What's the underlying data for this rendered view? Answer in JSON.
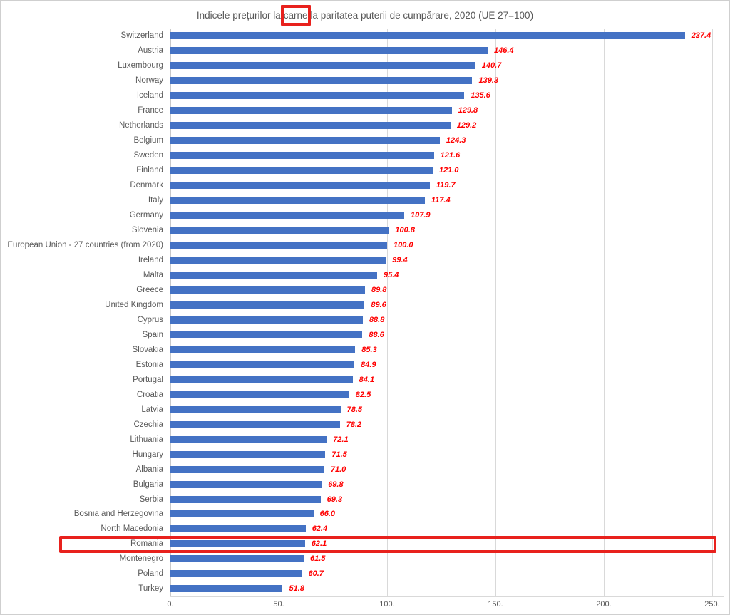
{
  "title": {
    "prefix": "Indicele prețurilor la",
    "boxed_word": "carne",
    "suffix": "la paritatea puterii de cumpărare, 2020 (UE 27=100)",
    "color": "#595959"
  },
  "annotations": {
    "boxed_title_word": "carne",
    "highlighted_country": "Romania",
    "highlight_color": "#e8211d"
  },
  "colors": {
    "bar": "#4472c4",
    "value_label": "#ff0000",
    "gridline": "#d9d9d9",
    "text": "#595959"
  },
  "chart_data": {
    "type": "bar",
    "orientation": "horizontal",
    "title": "Indicele prețurilor la carne la paritatea puterii de cumpărare, 2020 (UE 27=100)",
    "categories": [
      "Switzerland",
      "Austria",
      "Luxembourg",
      "Norway",
      "Iceland",
      "France",
      "Netherlands",
      "Belgium",
      "Sweden",
      "Finland",
      "Denmark",
      "Italy",
      "Germany",
      "Slovenia",
      "European Union - 27 countries (from 2020)",
      "Ireland",
      "Malta",
      "Greece",
      "United Kingdom",
      "Cyprus",
      "Spain",
      "Slovakia",
      "Estonia",
      "Portugal",
      "Croatia",
      "Latvia",
      "Czechia",
      "Lithuania",
      "Hungary",
      "Albania",
      "Bulgaria",
      "Serbia",
      "Bosnia and Herzegovina",
      "North Macedonia",
      "Romania",
      "Montenegro",
      "Poland",
      "Turkey"
    ],
    "values": [
      237.4,
      146.4,
      140.7,
      139.3,
      135.6,
      129.8,
      129.2,
      124.3,
      121.6,
      121.0,
      119.7,
      117.4,
      107.9,
      100.8,
      100.0,
      99.4,
      95.4,
      89.8,
      89.6,
      88.8,
      88.6,
      85.3,
      84.9,
      84.1,
      82.5,
      78.5,
      78.2,
      72.1,
      71.5,
      71.0,
      69.8,
      69.3,
      66.0,
      62.4,
      62.1,
      61.5,
      60.7,
      51.8
    ],
    "xlabel": "",
    "ylabel": "",
    "xlim": [
      0,
      250
    ],
    "x_ticks": [
      "0.",
      "50.",
      "100.",
      "150.",
      "200.",
      "250."
    ],
    "x_tick_values": [
      0,
      50,
      100,
      150,
      200,
      250
    ],
    "grid": true,
    "legend": false,
    "value_labels_shown": true
  }
}
